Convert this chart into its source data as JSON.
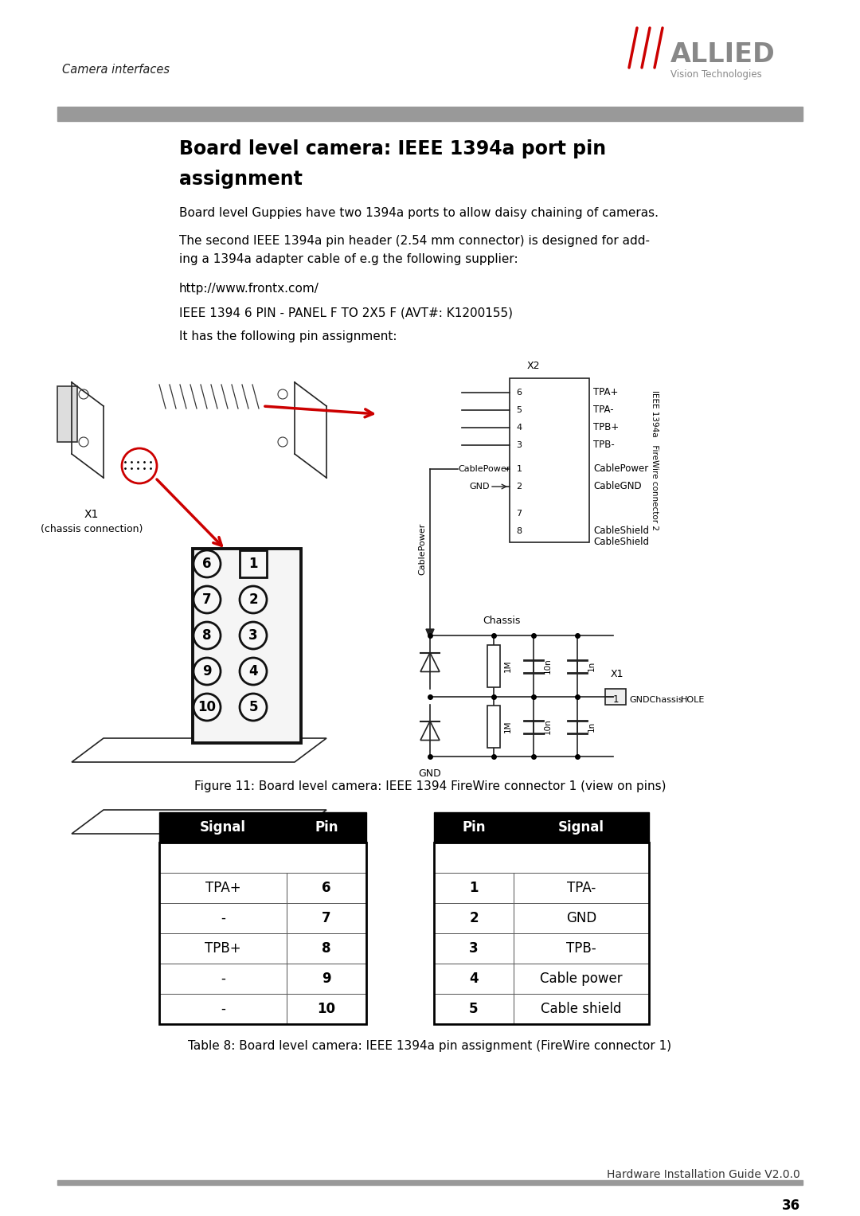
{
  "page_title": "Camera interfaces",
  "logo_allied": "ALLIED",
  "logo_sub": "Vision Technologies",
  "section_title": "Board level camera: IEEE 1394a port pin\nassignment",
  "para1": "Board level Guppies have two 1394a ports to allow daisy chaining of cameras.",
  "para2": "The second IEEE 1394a pin header (2.54 mm connector) is designed for add-\ning a 1394a adapter cable of e.g the following supplier:",
  "para3": "http://www.frontx.com/",
  "para4": "IEEE 1394 6 PIN - PANEL F TO 2X5 F (AVT#: K1200155)",
  "para5": "It has the following pin assignment:",
  "fig_caption": "Figure 11: Board level camera: IEEE 1394 FireWire connector 1 (view on pins)",
  "table_caption": "Table 8: Board level camera: IEEE 1394a pin assignment (FireWire connector 1)",
  "footer_text": "Hardware Installation Guide V2.0.0",
  "page_num": "36",
  "left_table_headers": [
    "Signal",
    "Pin"
  ],
  "left_table_rows": [
    [
      "TPA+",
      "6"
    ],
    [
      "-",
      "7"
    ],
    [
      "TPB+",
      "8"
    ],
    [
      "-",
      "9"
    ],
    [
      "-",
      "10"
    ]
  ],
  "right_table_headers": [
    "Pin",
    "Signal"
  ],
  "right_table_rows": [
    [
      "1",
      "TPA-"
    ],
    [
      "2",
      "GND"
    ],
    [
      "3",
      "TPB-"
    ],
    [
      "4",
      "Cable power"
    ],
    [
      "5",
      "Cable shield"
    ]
  ],
  "bg_color": "#ffffff",
  "header_bar_color": "#999999",
  "red_color": "#cc0000"
}
